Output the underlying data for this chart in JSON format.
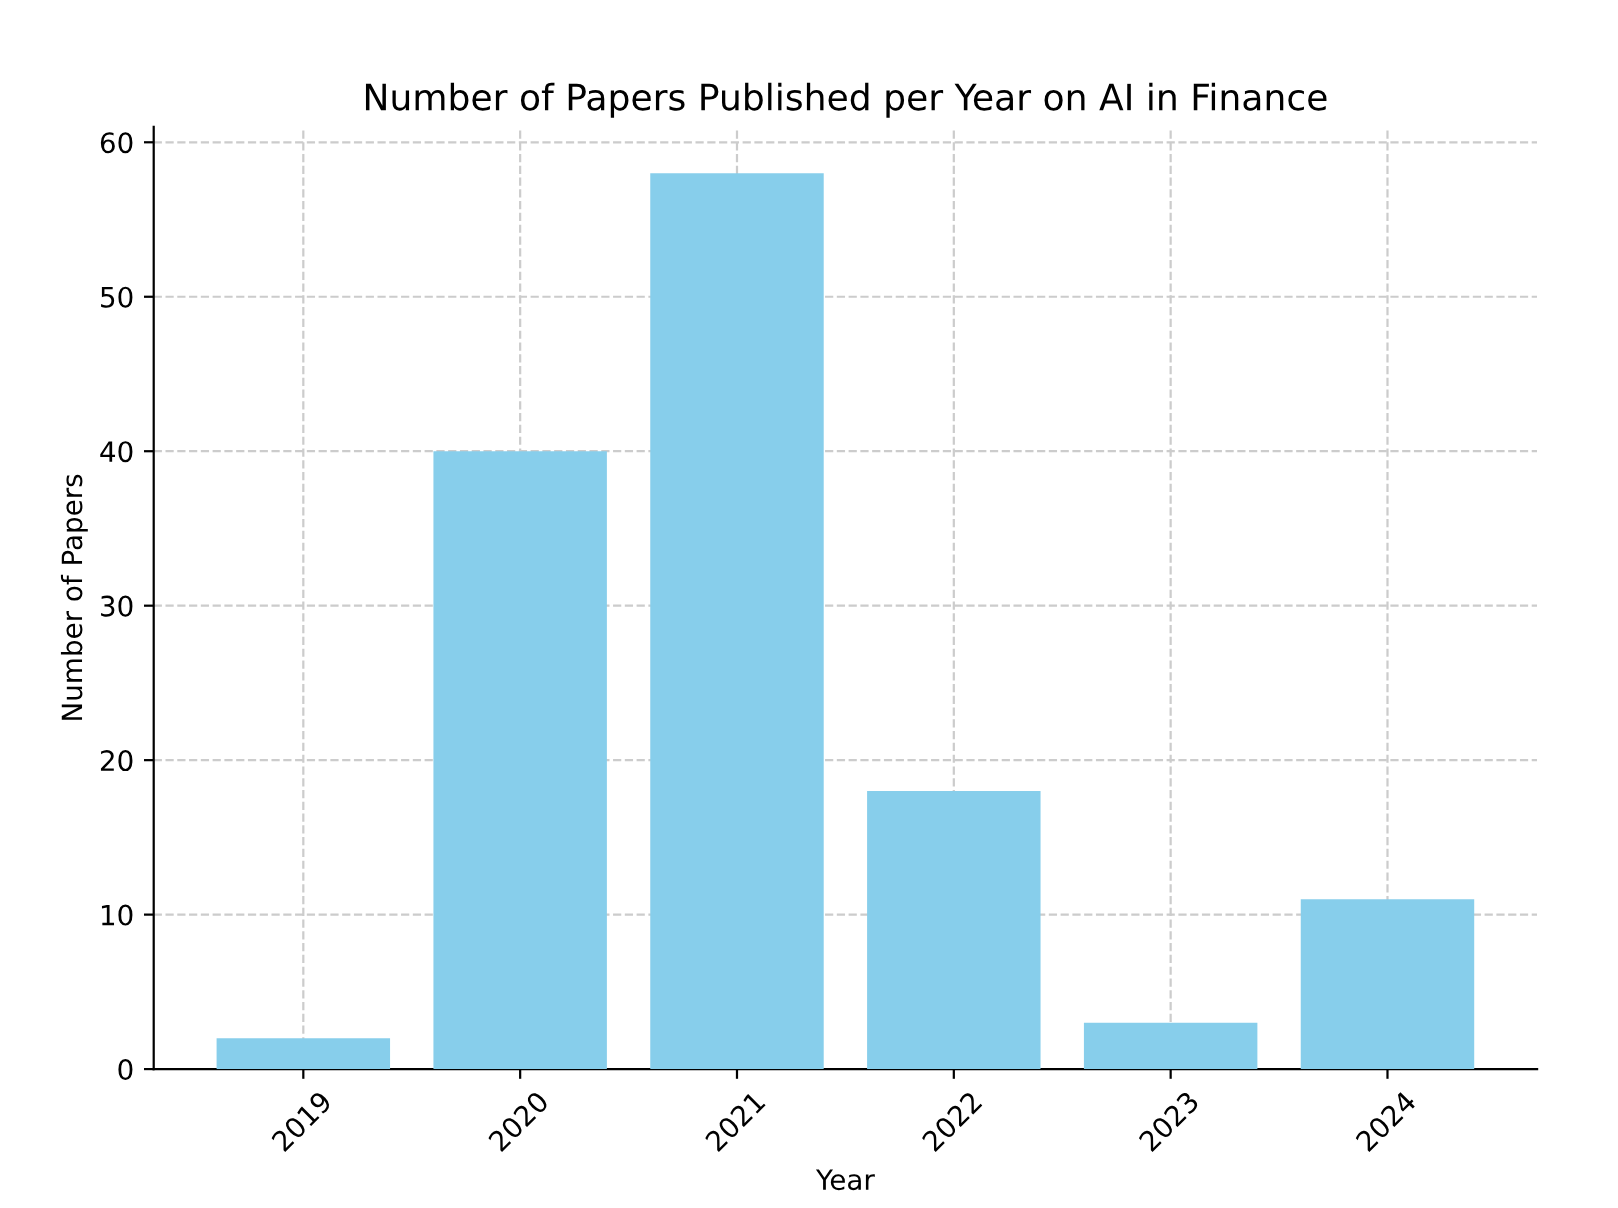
{
  "chart_data": {
    "type": "bar",
    "title": "Number of Papers Published per Year on AI in Finance",
    "xlabel": "Year",
    "ylabel": "Number of Papers",
    "categories": [
      "2019",
      "2020",
      "2021",
      "2022",
      "2023",
      "2024"
    ],
    "values": [
      2,
      40,
      58,
      18,
      3,
      11
    ],
    "color": "#87ceeb",
    "ylim": [
      0,
      61
    ],
    "yticks": [
      0,
      10,
      20,
      30,
      40,
      50,
      60
    ],
    "grid": true,
    "line_style": "dashed"
  }
}
